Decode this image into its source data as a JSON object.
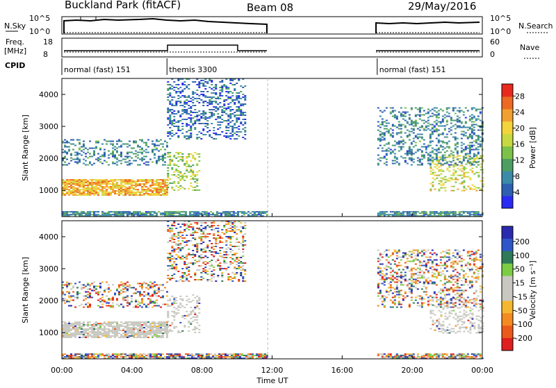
{
  "header": {
    "station": "Buckland Park (fitACF)",
    "beam": "Beam 08",
    "date": "29/May/2016"
  },
  "summary": {
    "nsky_label": "N.Sky",
    "nsky_ticks": [
      "10^5",
      "10^0"
    ],
    "nsearch_label": "N.Search",
    "nsearch_ticks": [
      "10^5",
      "10^0"
    ],
    "freq_label": "Freq.",
    "freq_unit": "[MHz]",
    "freq_ticks": [
      "18",
      "8"
    ],
    "nave_label": "Nave",
    "nave_ticks": [
      "60",
      "0"
    ],
    "cpid_label": "CPID",
    "cpid_segments": [
      {
        "label": "normal (fast) 151",
        "start_hour": 0.0,
        "end_hour": 6.0
      },
      {
        "label": "themis 3300",
        "start_hour": 6.0,
        "end_hour": 11.75
      },
      {
        "label": "normal (fast) 151",
        "start_hour": 18.0,
        "end_hour": 24.0
      }
    ]
  },
  "chart_data": [
    {
      "type": "heatmap",
      "title": "",
      "quantity": "Power",
      "xlabel": "",
      "ylabel": "Slant Range [km]",
      "xlim": [
        0,
        24
      ],
      "ylim": [
        180,
        4500
      ],
      "x_tick_labels": [
        "00:00",
        "04:00",
        "08:00",
        "12:00",
        "16:00",
        "20:00",
        "00:00"
      ],
      "y_ticks": [
        1000,
        2000,
        3000,
        4000
      ],
      "colorbar": {
        "label": "Power [dB]",
        "ticks": [
          4,
          8,
          12,
          16,
          20,
          24,
          28
        ],
        "range": [
          0,
          31
        ],
        "colors": [
          "#2a2af2",
          "#2e5fb0",
          "#3c8aa8",
          "#4c9e63",
          "#7cc24a",
          "#c8d840",
          "#f4d43a",
          "#f0a030",
          "#ec6a24",
          "#e82a1e"
        ]
      },
      "data_gaps": [
        [
          11.75,
          18.0
        ]
      ],
      "echo_regions": [
        {
          "feature": "ground scatter",
          "t": [
            0.0,
            11.75
          ],
          "range": [
            200,
            350
          ],
          "power": 8
        },
        {
          "feature": "ground scatter",
          "t": [
            18.0,
            24.0
          ],
          "range": [
            200,
            350
          ],
          "power": 8
        },
        {
          "feature": "strong band",
          "t": [
            0.0,
            6.0
          ],
          "range": [
            850,
            1350
          ],
          "power": 22
        },
        {
          "feature": "rising band",
          "t": [
            6.0,
            7.8
          ],
          "range": [
            1000,
            2200
          ],
          "power": 16
        },
        {
          "feature": "upper echoes",
          "t": [
            0.0,
            6.0
          ],
          "range": [
            1800,
            2600
          ],
          "power": 8
        },
        {
          "feature": "sparse high",
          "t": [
            6.0,
            10.5
          ],
          "range": [
            2600,
            4500
          ],
          "power": 6
        },
        {
          "feature": "evening band",
          "t": [
            21.0,
            24.0
          ],
          "range": [
            1000,
            2100
          ],
          "power": 18
        },
        {
          "feature": "evening upper",
          "t": [
            18.0,
            24.0
          ],
          "range": [
            1800,
            3600
          ],
          "power": 8
        }
      ]
    },
    {
      "type": "heatmap",
      "title": "",
      "quantity": "Velocity",
      "xlabel": "Time UT",
      "ylabel": "Slant Range [km]",
      "xlim": [
        0,
        24
      ],
      "ylim": [
        180,
        4500
      ],
      "x_tick_labels": [
        "00:00",
        "04:00",
        "08:00",
        "12:00",
        "16:00",
        "20:00",
        "00:00"
      ],
      "y_ticks": [
        1000,
        2000,
        3000,
        4000
      ],
      "colorbar": {
        "label": "Velocity [m s⁻¹]",
        "ticks": [
          200,
          100,
          50,
          15,
          -15,
          -50,
          -100,
          -200
        ],
        "colors": [
          "#2a2aae",
          "#2f56c8",
          "#2e7a58",
          "#7ccc44",
          "#c8c8c0",
          "#c8c8c0",
          "#f4b830",
          "#f48a20",
          "#ec5a1a",
          "#e01e1e"
        ]
      },
      "data_gaps": [
        [
          11.75,
          18.0
        ]
      ],
      "echo_regions": [
        {
          "feature": "ground scatter",
          "t": [
            0.0,
            11.75
          ],
          "range": [
            200,
            350
          ],
          "velocity": -60
        },
        {
          "feature": "ground scatter",
          "t": [
            18.0,
            24.0
          ],
          "range": [
            200,
            350
          ],
          "velocity": -60
        },
        {
          "feature": "low velocity band",
          "t": [
            0.0,
            6.0
          ],
          "range": [
            850,
            1350
          ],
          "velocity": 0
        },
        {
          "feature": "rising band",
          "t": [
            6.0,
            7.8
          ],
          "range": [
            1000,
            2200
          ],
          "velocity": 0
        },
        {
          "feature": "upper echoes",
          "t": [
            0.0,
            6.0
          ],
          "range": [
            1800,
            2600
          ],
          "velocity": 40
        },
        {
          "feature": "sparse high",
          "t": [
            6.0,
            10.5
          ],
          "range": [
            2600,
            4500
          ],
          "velocity": -80
        },
        {
          "feature": "evening band",
          "t": [
            21.0,
            24.0
          ],
          "range": [
            1000,
            2100
          ],
          "velocity": 0
        },
        {
          "feature": "evening upper",
          "t": [
            18.0,
            24.0
          ],
          "range": [
            1800,
            3600
          ],
          "velocity": 60
        }
      ]
    }
  ]
}
